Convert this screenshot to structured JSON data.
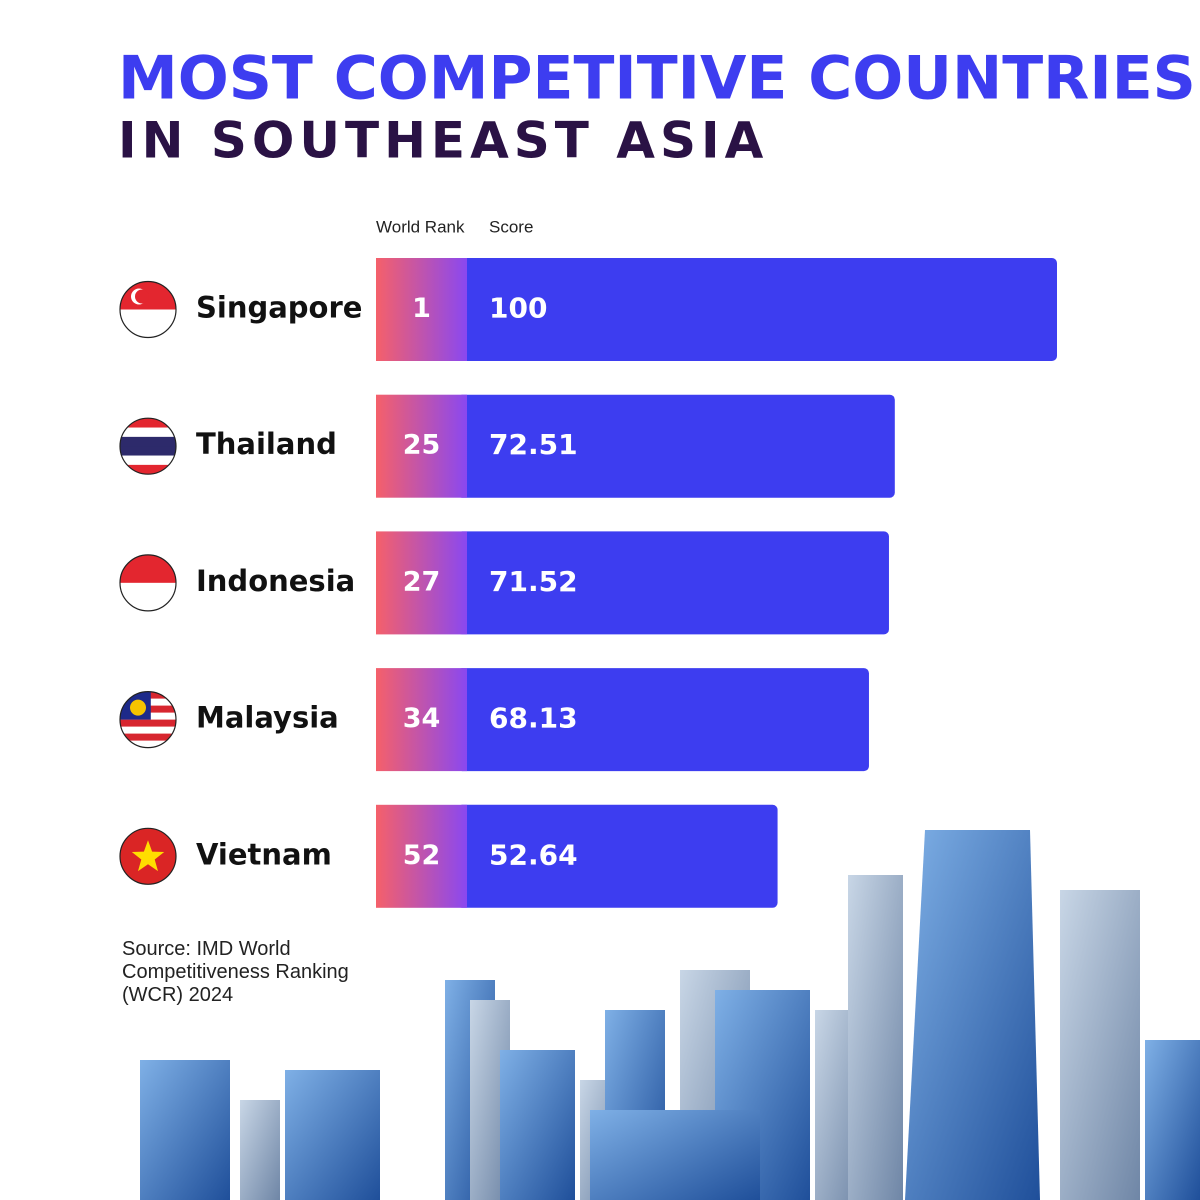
{
  "chart_data": {
    "type": "bar",
    "orientation": "horizontal",
    "title": "MOST COMPETITIVE COUNTRIES",
    "subtitle": "IN SOUTHEAST ASIA",
    "categories": [
      "Singapore",
      "Thailand",
      "Indonesia",
      "Malaysia",
      "Vietnam"
    ],
    "series": [
      {
        "name": "World Rank",
        "color": "#f0606a",
        "values": [
          1,
          25,
          27,
          34,
          52
        ]
      },
      {
        "name": "Score",
        "color": "#3d3df0",
        "values": [
          100,
          72.51,
          71.52,
          68.13,
          52.64
        ]
      }
    ],
    "source": "Source: IMD World Competitiveness Ranking (WCR) 2024"
  }
}
